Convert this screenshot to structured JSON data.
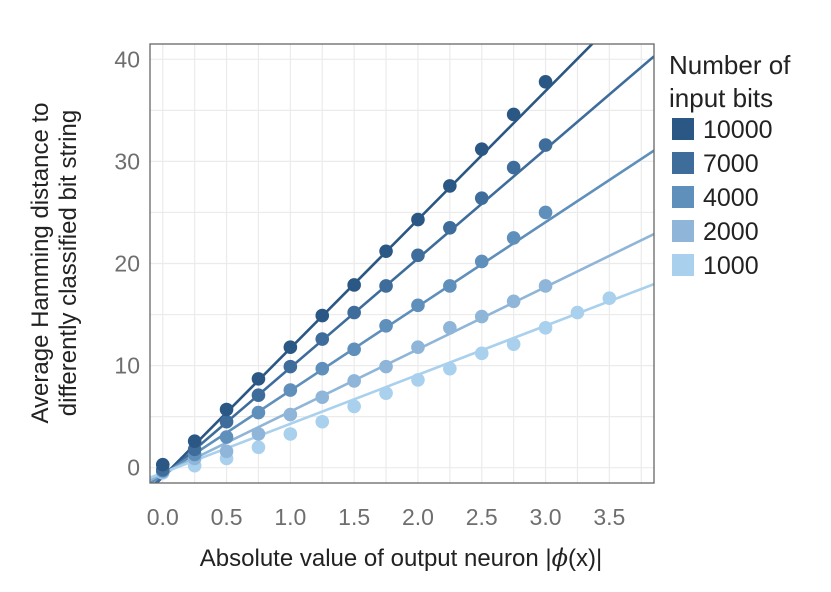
{
  "chart_data": {
    "type": "scatter",
    "xlabel_parts": [
      "Absolute value of output neuron |",
      "ϕ",
      "(x)|"
    ],
    "ylabel_lines": [
      "Average Hamming distance to",
      "differently classified bit string"
    ],
    "xlim": [
      -0.1,
      3.85
    ],
    "ylim": [
      -1.5,
      41.5
    ],
    "xticks": [
      0.0,
      0.25,
      0.5,
      0.75,
      1.0,
      1.25,
      1.5,
      1.75,
      2.0,
      2.25,
      2.5,
      2.75,
      3.0,
      3.25,
      3.5,
      3.75
    ],
    "xtick_labels": [
      "0.0",
      "0.5",
      "1.0",
      "1.5",
      "2.0",
      "2.5",
      "3.0",
      "3.5"
    ],
    "xtick_label_values": [
      0.0,
      0.5,
      1.0,
      1.5,
      2.0,
      2.5,
      3.0,
      3.5
    ],
    "yticks": [
      0,
      5,
      10,
      15,
      20,
      25,
      30,
      35,
      40
    ],
    "ytick_labels": [
      "0",
      "10",
      "20",
      "30",
      "40"
    ],
    "ytick_label_values": [
      0,
      10,
      20,
      30,
      40
    ],
    "grid": true,
    "legend": {
      "title_lines": [
        "Number of",
        "input bits"
      ],
      "position": "right"
    },
    "series": [
      {
        "name": "10000",
        "color": "#2a5783",
        "fit_slope": 12.6,
        "fit_intercept": -0.9,
        "x": [
          0.0,
          0.25,
          0.5,
          0.75,
          1.0,
          1.25,
          1.5,
          1.75,
          2.0,
          2.25,
          2.5,
          2.75,
          3.0
        ],
        "y": [
          0.3,
          2.6,
          5.7,
          8.7,
          11.8,
          14.9,
          17.9,
          21.2,
          24.3,
          27.6,
          31.2,
          34.6,
          37.8
        ]
      },
      {
        "name": "7000",
        "color": "#3e6c9b",
        "fit_slope": 10.7,
        "fit_intercept": -0.9,
        "x": [
          0.0,
          0.25,
          0.5,
          0.75,
          1.0,
          1.25,
          1.5,
          1.75,
          2.0,
          2.25,
          2.5,
          2.75,
          3.0
        ],
        "y": [
          -0.2,
          1.8,
          4.5,
          7.1,
          9.9,
          12.6,
          15.2,
          17.8,
          20.8,
          23.5,
          26.4,
          29.4,
          31.6
        ]
      },
      {
        "name": "4000",
        "color": "#5f8fbb",
        "fit_slope": 8.25,
        "fit_intercept": -0.7,
        "x": [
          0.0,
          0.25,
          0.5,
          0.75,
          1.0,
          1.25,
          1.5,
          1.75,
          2.0,
          2.25,
          2.5,
          2.75,
          3.0
        ],
        "y": [
          -0.3,
          1.3,
          3.0,
          5.4,
          7.6,
          9.7,
          11.6,
          13.9,
          15.9,
          17.8,
          20.2,
          22.5,
          25.0
        ]
      },
      {
        "name": "2000",
        "color": "#8fb5d8",
        "fit_slope": 6.1,
        "fit_intercept": -0.6,
        "x": [
          0.0,
          0.25,
          0.5,
          0.75,
          1.0,
          1.25,
          1.5,
          1.75,
          2.0,
          2.25,
          2.5,
          2.75,
          3.0
        ],
        "y": [
          -0.4,
          0.9,
          1.6,
          3.3,
          5.2,
          6.9,
          8.5,
          9.9,
          11.8,
          13.7,
          14.8,
          16.3,
          17.8
        ]
      },
      {
        "name": "1000",
        "color": "#a9d0ec",
        "fit_slope": 4.8,
        "fit_intercept": -0.5,
        "x": [
          0.0,
          0.25,
          0.5,
          0.75,
          1.0,
          1.25,
          1.5,
          1.75,
          2.0,
          2.25,
          2.5,
          2.75,
          3.0,
          3.25,
          3.5
        ],
        "y": [
          -0.5,
          0.2,
          0.9,
          2.0,
          3.3,
          4.5,
          6.0,
          7.3,
          8.6,
          9.7,
          11.2,
          12.1,
          13.7,
          15.2,
          16.6
        ]
      }
    ]
  }
}
